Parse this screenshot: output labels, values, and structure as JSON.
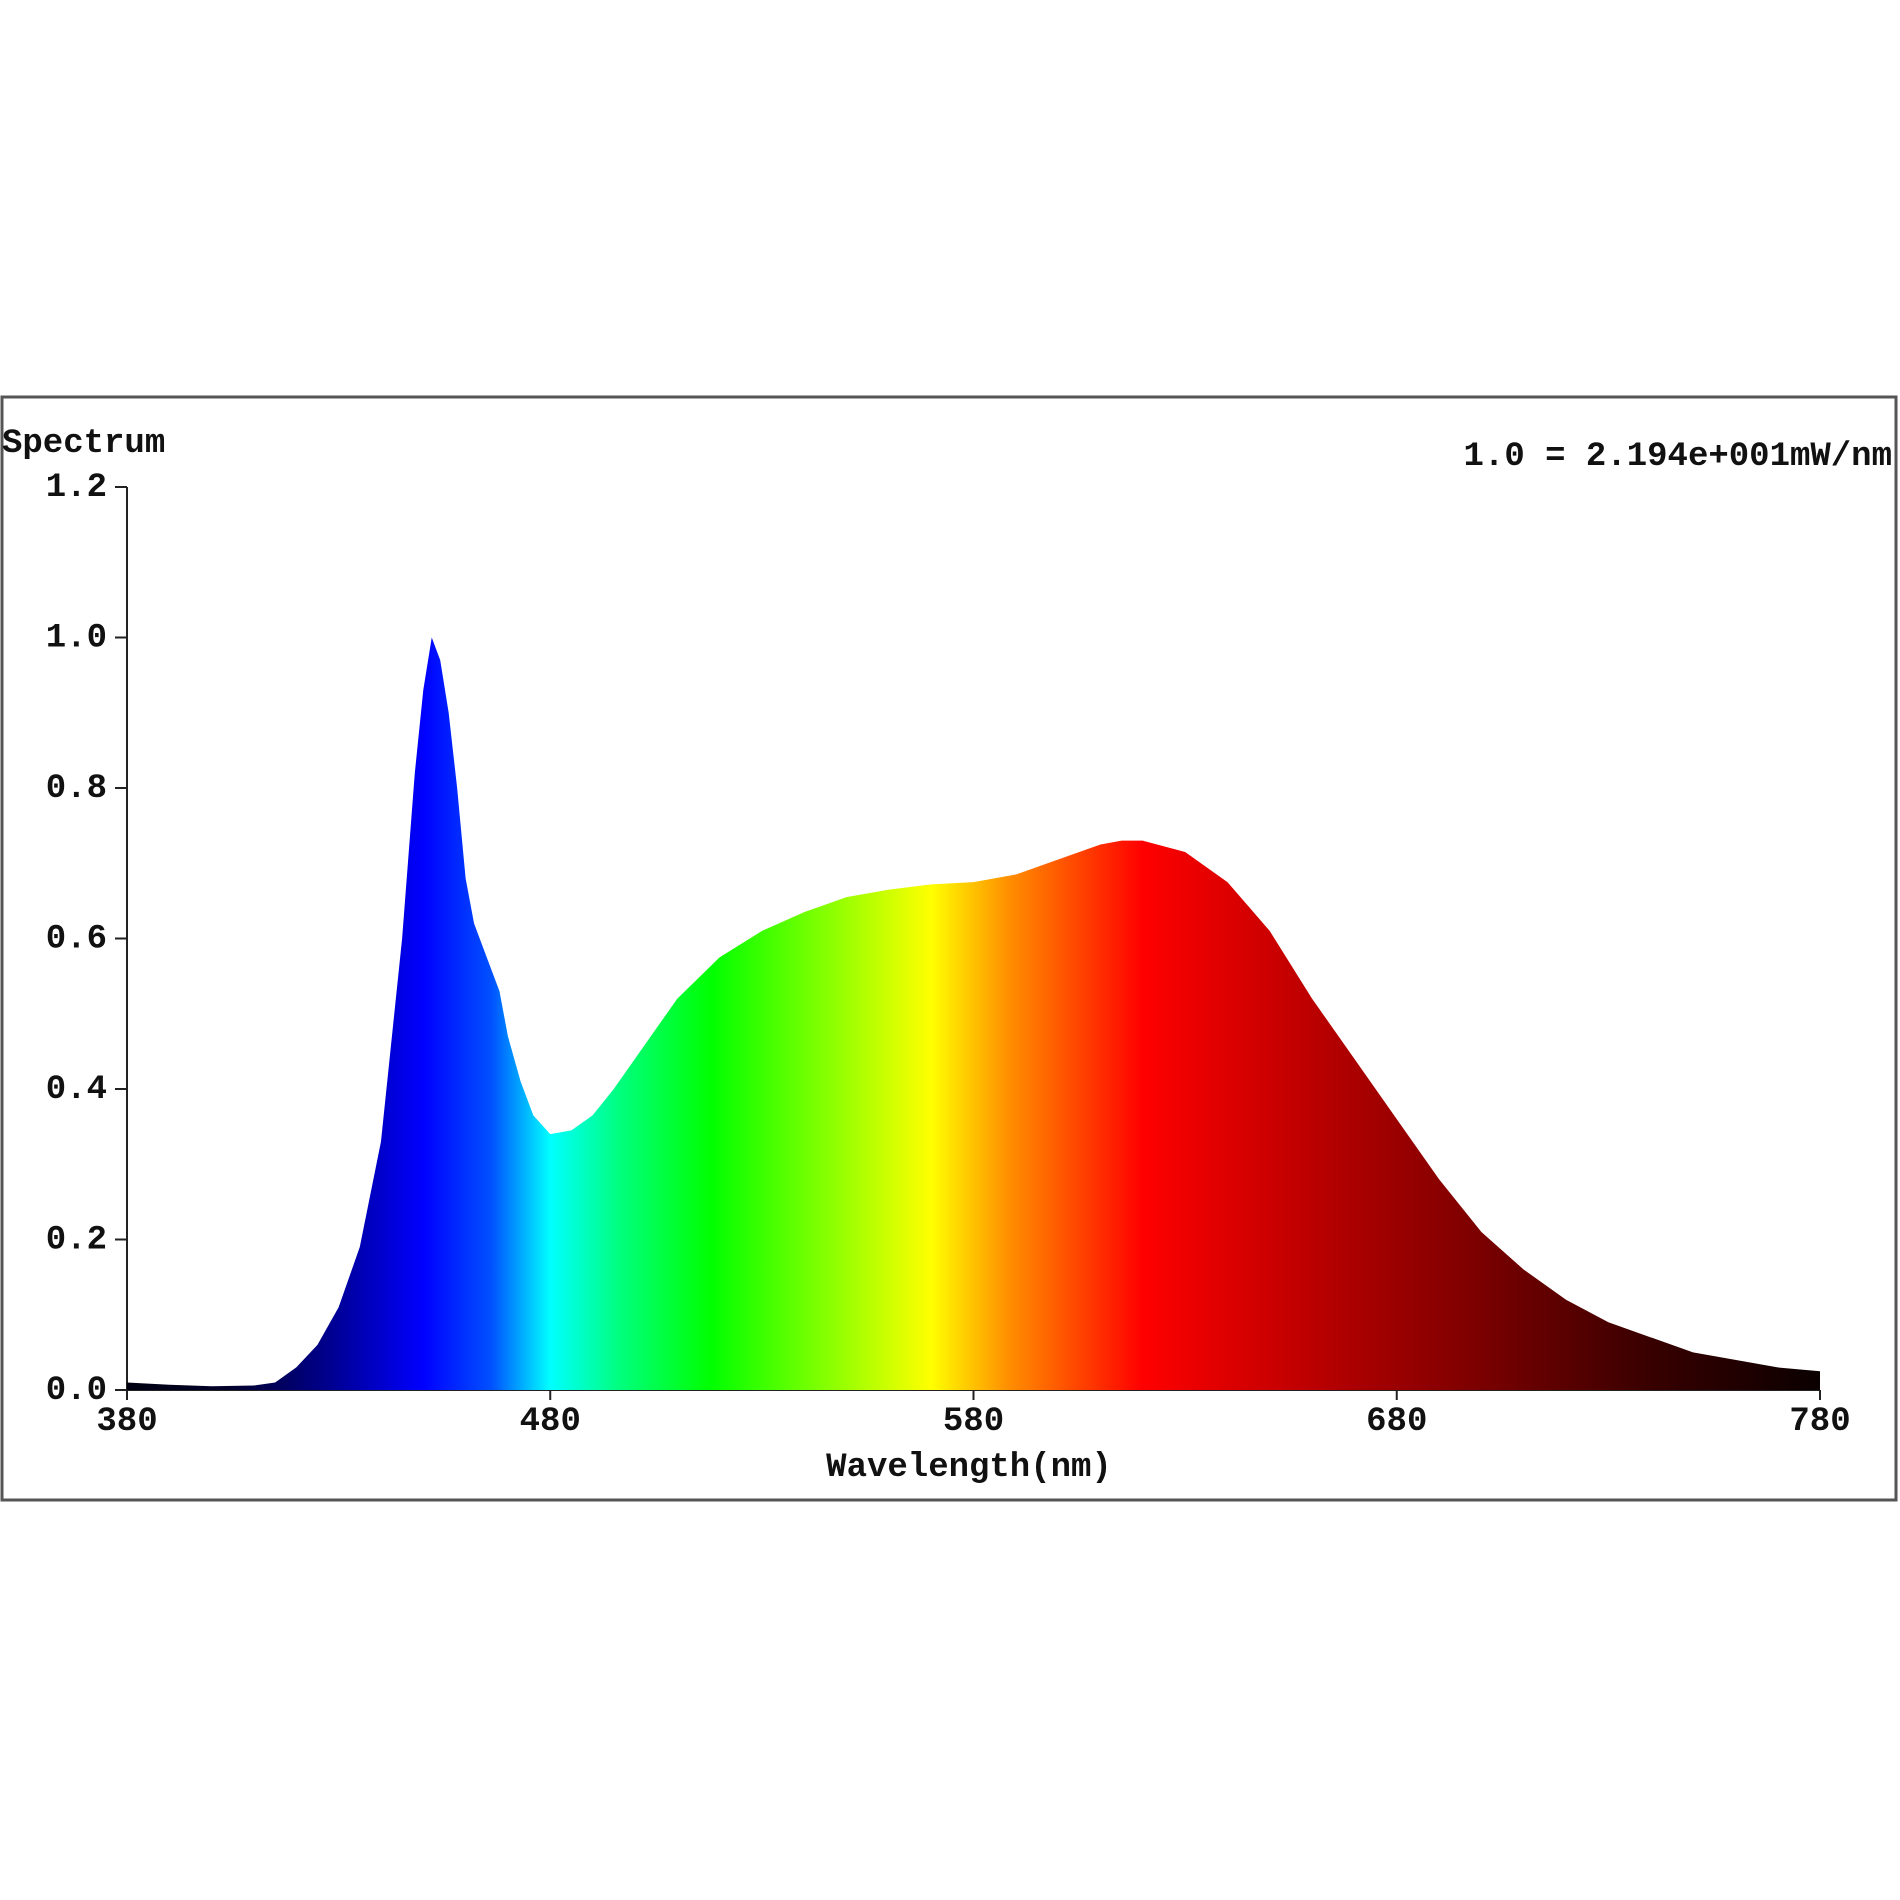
{
  "chart_data": {
    "type": "area",
    "title": "Spectrum",
    "annotation": "1.0 = 2.194e+001mW/nm",
    "x_label": "Wavelength(nm)",
    "x": [
      380,
      390,
      400,
      410,
      415,
      420,
      425,
      430,
      435,
      440,
      445,
      448,
      450,
      452,
      454,
      456,
      458,
      460,
      462,
      465,
      468,
      470,
      473,
      476,
      480,
      485,
      490,
      495,
      500,
      510,
      520,
      530,
      540,
      550,
      560,
      570,
      580,
      590,
      600,
      610,
      615,
      620,
      630,
      640,
      650,
      660,
      670,
      680,
      690,
      700,
      710,
      720,
      730,
      740,
      750,
      760,
      770,
      780
    ],
    "values": [
      0.01,
      0.007,
      0.005,
      0.006,
      0.01,
      0.03,
      0.06,
      0.11,
      0.19,
      0.33,
      0.6,
      0.82,
      0.93,
      1.0,
      0.97,
      0.9,
      0.8,
      0.68,
      0.62,
      0.575,
      0.53,
      0.47,
      0.41,
      0.365,
      0.34,
      0.345,
      0.365,
      0.4,
      0.44,
      0.52,
      0.575,
      0.61,
      0.635,
      0.655,
      0.665,
      0.672,
      0.675,
      0.685,
      0.705,
      0.725,
      0.73,
      0.73,
      0.715,
      0.675,
      0.61,
      0.52,
      0.44,
      0.36,
      0.28,
      0.21,
      0.16,
      0.12,
      0.09,
      0.07,
      0.05,
      0.04,
      0.03,
      0.025
    ],
    "xlim": [
      380,
      780
    ],
    "xticks": [
      380,
      480,
      580,
      680,
      780
    ],
    "ylim": [
      0,
      1.2
    ],
    "yticks": [
      {
        "value": 0,
        "label": "0.0"
      },
      0.2,
      0.4,
      0.6,
      0.8,
      {
        "value": 1,
        "label": "1.0"
      },
      1.2
    ]
  }
}
